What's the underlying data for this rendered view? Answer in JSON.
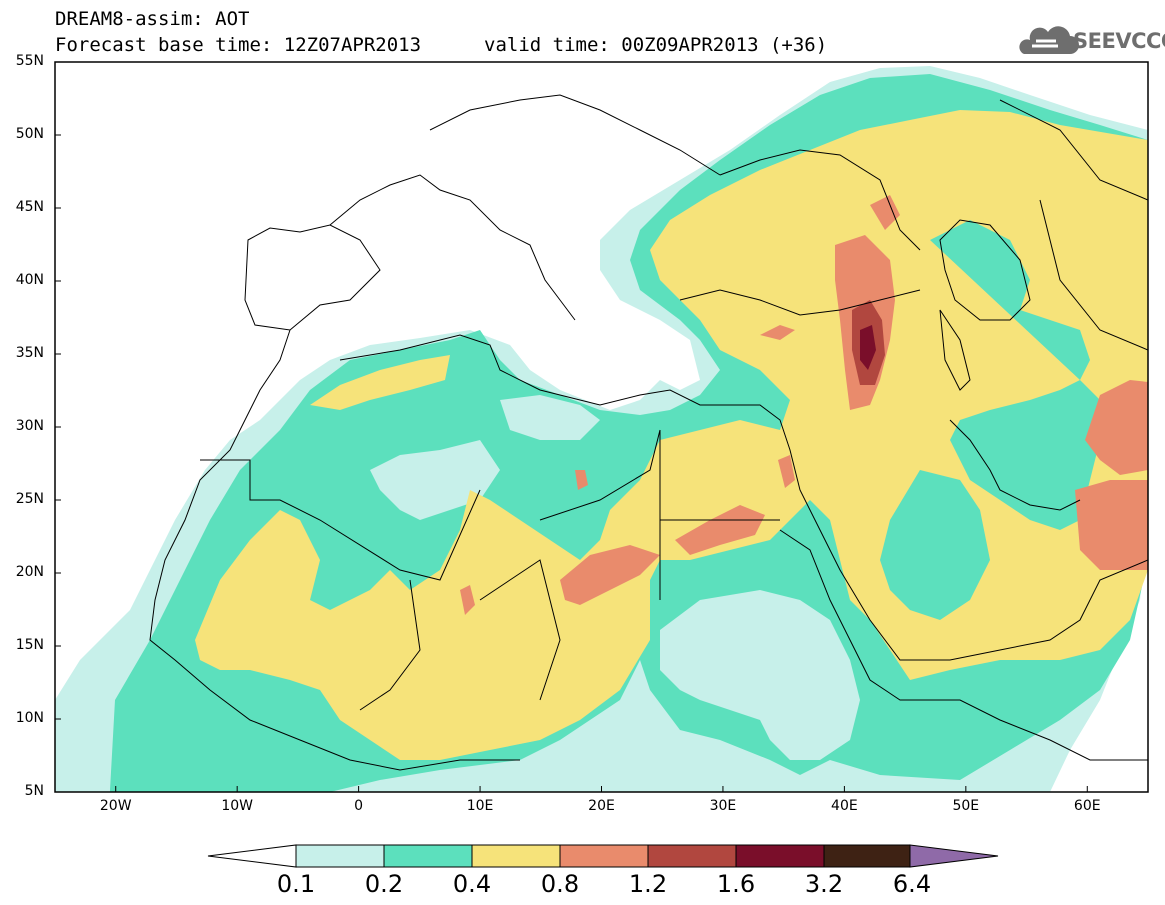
{
  "header": {
    "line1": "DREAM8-assim: AOT",
    "line2": "Forecast base time: 12Z07APR2013",
    "valid": "valid time: 00Z09APR2013 (+36)"
  },
  "logo": {
    "text": "SEEVCCC",
    "icon": "cloud-icon"
  },
  "axes": {
    "lat_labels": [
      "55N",
      "50N",
      "45N",
      "40N",
      "35N",
      "30N",
      "25N",
      "20N",
      "15N",
      "10N",
      "5N"
    ],
    "lon_labels": [
      "20W",
      "10W",
      "0",
      "10E",
      "20E",
      "30E",
      "40E",
      "50E",
      "60E"
    ],
    "lon_range": [
      -25,
      65
    ],
    "lat_range": [
      5,
      55
    ]
  },
  "colorbar": {
    "labels": [
      "0.1",
      "0.2",
      "0.4",
      "0.8",
      "1.2",
      "1.6",
      "3.2",
      "6.4"
    ],
    "colors": [
      "#ffffff",
      "#c7f0ea",
      "#5ce0bd",
      "#f6e37a",
      "#e98b6c",
      "#b1473f",
      "#7a0e2a",
      "#3e2214",
      "#8f6aa8"
    ]
  },
  "levels": {
    "none": "#ffffff",
    "l1": "#c7f0ea",
    "l2": "#5ce0bd",
    "l3": "#f6e37a",
    "l4": "#e98b6c",
    "l5": "#b1473f",
    "l6": "#7a0e2a"
  }
}
